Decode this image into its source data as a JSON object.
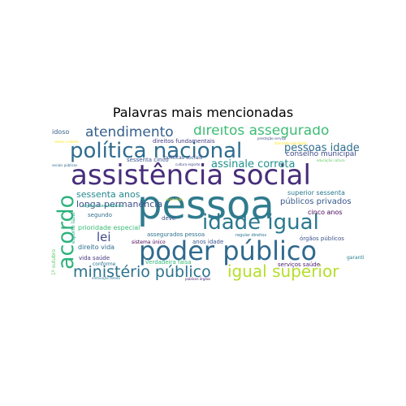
{
  "title": "Palavras mais mencionadas",
  "words": [
    {
      "id": "pessoa",
      "text": "pessoa",
      "color": "#2f7b8e"
    },
    {
      "id": "assistencia-social",
      "text": "assistência social",
      "color": "#472d7b"
    },
    {
      "id": "poder-publico",
      "text": "poder público",
      "color": "#30698e"
    },
    {
      "id": "politica-nacional",
      "text": "política nacional",
      "color": "#2f6c8e"
    },
    {
      "id": "idade-igual",
      "text": "idade igual",
      "color": "#2a788e"
    },
    {
      "id": "acordo",
      "text": "acordo",
      "color": "#2db27d"
    },
    {
      "id": "igual-superior",
      "text": "igual superior",
      "color": "#b5de2b"
    },
    {
      "id": "ministerio-publico",
      "text": "ministério público",
      "color": "#2c728e"
    },
    {
      "id": "direitos-assegurado",
      "text": "direitos assegurado",
      "color": "#3dbc74"
    },
    {
      "id": "atendimento",
      "text": "atendimento",
      "color": "#355f8d"
    },
    {
      "id": "lei",
      "text": "lei",
      "color": "#3e4a89"
    },
    {
      "id": "assinale-correta",
      "text": "assinale correta",
      "color": "#21918c"
    },
    {
      "id": "pessoas-idade",
      "text": "pessoas idade",
      "color": "#2e6e8e"
    },
    {
      "id": "sessenta-anos",
      "text": "sessenta anos",
      "color": "#23888e"
    },
    {
      "id": "longa-permanencia",
      "text": "longa permanência",
      "color": "#3b528b"
    },
    {
      "id": "publicos-privados",
      "text": "públicos privados",
      "color": "#38598c"
    },
    {
      "id": "conselho-municipal",
      "text": "conselho municipal",
      "color": "#3e4989"
    },
    {
      "id": "superior-sessenta",
      "text": "superior sessenta",
      "color": "#2a788e"
    },
    {
      "id": "cinco-anos",
      "text": "cinco anos",
      "color": "#440154"
    },
    {
      "id": "idoso",
      "text": "idoso",
      "color": "#355f8d"
    },
    {
      "id": "direitos-fundamentais",
      "text": "direitos fundamentais",
      "color": "#433e85"
    },
    {
      "id": "sessenta-cinco",
      "text": "sessenta cinco",
      "color": "#39568c"
    },
    {
      "id": "politicas-sociais",
      "text": "politicas sociais",
      "color": "#3b528b"
    },
    {
      "id": "segundo",
      "text": "segundo",
      "color": "#2e6e8e"
    },
    {
      "id": "deve",
      "text": "deve",
      "color": "#3e4a89"
    },
    {
      "id": "prioridade-especial",
      "text": "prioridade especial",
      "color": "#3dbc74"
    },
    {
      "id": "assegurados-pessoa",
      "text": "assegurados pessoa",
      "color": "#2c728e"
    },
    {
      "id": "anos-idade",
      "text": "anos idade",
      "color": "#39568c"
    },
    {
      "id": "direito-vida",
      "text": "direito vida",
      "color": "#2e6e8e"
    },
    {
      "id": "sistema-unico",
      "text": "sistema único",
      "color": "#440154"
    },
    {
      "id": "vida-saude",
      "text": "vida saúde",
      "color": "#46337e"
    },
    {
      "id": "verdadeira-falsa",
      "text": "verdadeira falsa",
      "color": "#35b779"
    },
    {
      "id": "orgaos-publicos",
      "text": "órgãos públicos",
      "color": "#3b528b"
    },
    {
      "id": "servicos-saude",
      "text": "serviços saúde",
      "color": "#481a6c"
    },
    {
      "id": "conforme",
      "text": "conforme",
      "color": "#2c728e"
    },
    {
      "id": "garantia",
      "text": "garantia",
      "color": "#27808e"
    },
    {
      "id": "regular-direitos",
      "text": "regular direitos",
      "color": "#2c728e"
    },
    {
      "id": "organica-assistencia",
      "text": "orgânica assistência",
      "color": "#1fa187"
    },
    {
      "id": "esporte-lazer",
      "text": "esporte lazer",
      "color": "#22a884"
    },
    {
      "id": "1-outubro",
      "text": "1º outubro",
      "color": "#5ec962"
    },
    {
      "id": "sociais-publicas",
      "text": "sociais públicas",
      "color": "#31688e"
    },
    {
      "id": "educacao-cultura",
      "text": "educação cultura",
      "color": "#5ec962"
    },
    {
      "id": "cultura-esporte",
      "text": "cultura esporte",
      "color": "#3e4989"
    },
    {
      "id": "prestacao-servico",
      "text": "prestação serviço",
      "color": "#3e4989"
    },
    {
      "id": "liberdade-dignidade",
      "text": "liberdade dignidade",
      "color": "#fde725"
    },
    {
      "id": "idosos-cuidado",
      "text": "idosos cuidado",
      "color": "#fde725"
    },
    {
      "id": "efetivacao-direito",
      "text": "efetivação direito",
      "color": "#2a788e"
    },
    {
      "id": "publicos-orgaos",
      "text": "públicos órgãos",
      "color": "#481a6c"
    },
    {
      "id": "cinco-anos-small",
      "text": "cinco anos",
      "color": "#fde725"
    }
  ]
}
